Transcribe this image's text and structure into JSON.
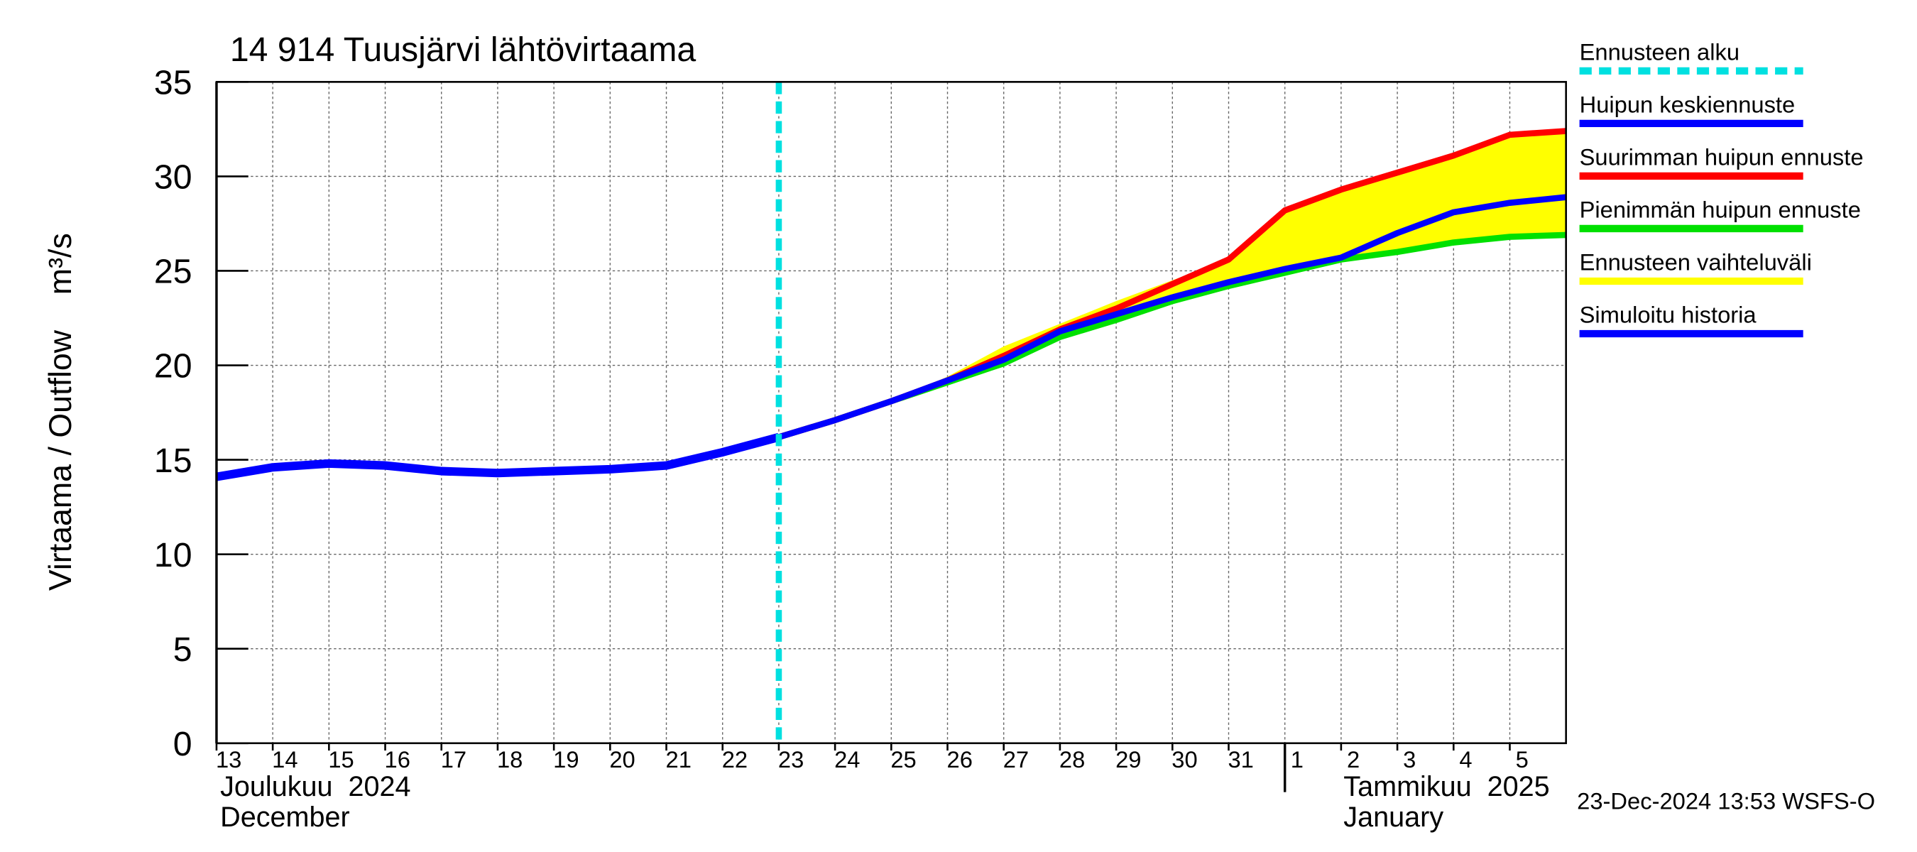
{
  "chart_data": {
    "type": "line",
    "title": "14 914 Tuusjärvi lähtövirtaama",
    "ylabel": "Virtaama / Outflow    m³/s",
    "x": [
      "2024-12-13",
      "2024-12-14",
      "2024-12-15",
      "2024-12-16",
      "2024-12-17",
      "2024-12-18",
      "2024-12-19",
      "2024-12-20",
      "2024-12-21",
      "2024-12-22",
      "2024-12-23",
      "2024-12-24",
      "2024-12-25",
      "2024-12-26",
      "2024-12-27",
      "2024-12-28",
      "2024-12-29",
      "2024-12-30",
      "2024-12-31",
      "2025-01-01",
      "2025-01-02",
      "2025-01-03",
      "2025-01-04",
      "2025-01-05",
      "2025-01-06"
    ],
    "xlim": [
      "2024-12-13",
      "2025-01-06"
    ],
    "xticks": [
      {
        "value": "2024-12-13",
        "label": "13"
      },
      {
        "value": "2024-12-14",
        "label": "14"
      },
      {
        "value": "2024-12-15",
        "label": "15"
      },
      {
        "value": "2024-12-16",
        "label": "16"
      },
      {
        "value": "2024-12-17",
        "label": "17"
      },
      {
        "value": "2024-12-18",
        "label": "18"
      },
      {
        "value": "2024-12-19",
        "label": "19"
      },
      {
        "value": "2024-12-20",
        "label": "20"
      },
      {
        "value": "2024-12-21",
        "label": "21"
      },
      {
        "value": "2024-12-22",
        "label": "22"
      },
      {
        "value": "2024-12-23",
        "label": "23"
      },
      {
        "value": "2024-12-24",
        "label": "24"
      },
      {
        "value": "2024-12-25",
        "label": "25"
      },
      {
        "value": "2024-12-26",
        "label": "26"
      },
      {
        "value": "2024-12-27",
        "label": "27"
      },
      {
        "value": "2024-12-28",
        "label": "28"
      },
      {
        "value": "2024-12-29",
        "label": "29"
      },
      {
        "value": "2024-12-30",
        "label": "30"
      },
      {
        "value": "2024-12-31",
        "label": "31"
      },
      {
        "value": "2025-01-01",
        "label": "1"
      },
      {
        "value": "2025-01-02",
        "label": "2"
      },
      {
        "value": "2025-01-03",
        "label": "3"
      },
      {
        "value": "2025-01-04",
        "label": "4"
      },
      {
        "value": "2025-01-05",
        "label": "5"
      }
    ],
    "months": [
      {
        "start": "2024-12-13",
        "label": "Joulukuu  2024",
        "label_en": "December"
      },
      {
        "start": "2025-01-01",
        "label": "Tammikuu  2025",
        "label_en": "January"
      }
    ],
    "ylim": [
      0,
      35
    ],
    "yticks": [
      0,
      5,
      10,
      15,
      20,
      25,
      30,
      35
    ],
    "grid": true,
    "forecast_start": {
      "name": "Ennusteen alku",
      "x": "2024-12-23",
      "color": "#00e0e0"
    },
    "series": [
      {
        "name": "Huipun keskiennuste",
        "color": "#0000ff",
        "values": [
          null,
          null,
          null,
          null,
          null,
          null,
          null,
          null,
          null,
          null,
          16.2,
          17.1,
          18.1,
          19.2,
          20.3,
          21.8,
          22.7,
          23.6,
          24.4,
          25.1,
          25.7,
          27.0,
          28.1,
          28.6,
          28.9
        ]
      },
      {
        "name": "Suurimman huipun ennuste",
        "color": "#ff0000",
        "values": [
          null,
          null,
          null,
          null,
          null,
          null,
          null,
          null,
          null,
          null,
          16.2,
          17.1,
          18.1,
          19.2,
          20.5,
          21.9,
          23.0,
          24.3,
          25.6,
          28.2,
          29.3,
          30.2,
          31.1,
          32.2,
          32.4
        ]
      },
      {
        "name": "Pienimmän huipun ennuste",
        "color": "#00e000",
        "values": [
          null,
          null,
          null,
          null,
          null,
          null,
          null,
          null,
          null,
          null,
          16.2,
          17.1,
          18.1,
          19.1,
          20.1,
          21.5,
          22.4,
          23.4,
          24.2,
          24.9,
          25.6,
          26.0,
          26.5,
          26.8,
          26.9
        ]
      },
      {
        "name": "Ennusteen vaihteluväli",
        "color": "#ffff00",
        "kind": "band",
        "values": [
          null,
          null,
          null,
          null,
          null,
          null,
          null,
          null,
          null,
          null,
          16.2,
          17.1,
          18.1,
          19.4,
          21.0,
          22.2,
          23.4,
          24.5,
          25.6,
          28.2,
          29.3,
          30.2,
          31.1,
          32.2,
          32.4
        ],
        "lower": [
          null,
          null,
          null,
          null,
          null,
          null,
          null,
          null,
          null,
          null,
          16.2,
          17.1,
          18.1,
          19.1,
          20.1,
          21.5,
          22.4,
          23.4,
          24.2,
          24.9,
          25.6,
          26.0,
          26.5,
          26.8,
          26.9
        ]
      },
      {
        "name": "Simuloitu historia",
        "color": "#0000ff",
        "values": [
          14.1,
          14.6,
          14.8,
          14.7,
          14.4,
          14.3,
          14.4,
          14.5,
          14.7,
          15.4,
          16.2,
          null,
          null,
          null,
          null,
          null,
          null,
          null,
          null,
          null,
          null,
          null,
          null,
          null,
          null
        ]
      }
    ],
    "footer": "23-Dec-2024 13:53 WSFS-O"
  }
}
